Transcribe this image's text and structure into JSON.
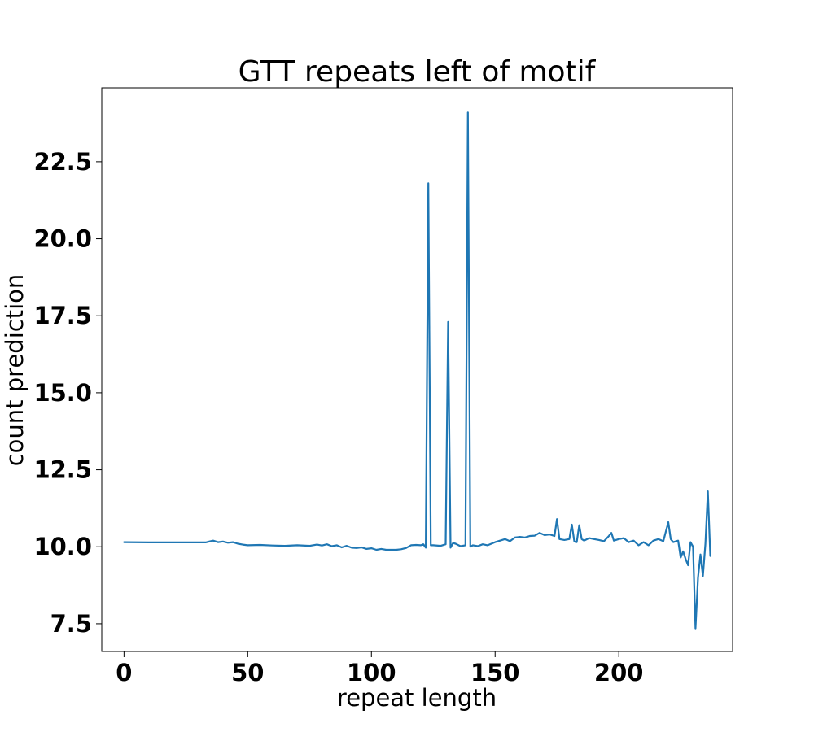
{
  "chart_data": {
    "type": "line",
    "title": "GTT repeats left of motif",
    "xlabel": "repeat length",
    "ylabel": "count prediction",
    "xlim": [
      -9,
      246
    ],
    "ylim": [
      6.6,
      24.9
    ],
    "xticks": [
      0,
      50,
      100,
      150,
      200
    ],
    "xtick_labels": [
      "0",
      "50",
      "100",
      "150",
      "200"
    ],
    "yticks": [
      7.5,
      10.0,
      12.5,
      15.0,
      17.5,
      20.0,
      22.5
    ],
    "ytick_labels": [
      "7.5",
      "10.0",
      "12.5",
      "15.0",
      "17.5",
      "20.0",
      "22.5"
    ],
    "grid": false,
    "color": "#1f77b4",
    "series": [
      {
        "x": [
          0,
          10,
          20,
          30,
          33,
          36,
          38,
          40,
          42,
          44,
          46,
          48,
          50,
          55,
          60,
          65,
          70,
          75,
          78,
          80,
          82,
          84,
          86,
          88,
          90,
          92,
          94,
          96,
          98,
          100,
          102,
          104,
          106,
          108,
          110,
          112,
          114,
          116,
          118,
          120,
          121,
          122,
          123,
          124,
          125,
          128,
          130,
          131,
          132,
          133,
          134,
          136,
          138,
          139,
          140,
          141,
          143,
          145,
          147,
          150,
          152,
          154,
          156,
          158,
          160,
          162,
          164,
          166,
          168,
          170,
          172,
          174,
          175,
          176,
          178,
          180,
          181,
          182,
          183,
          184,
          185,
          186,
          188,
          190,
          192,
          194,
          196,
          197,
          198,
          200,
          202,
          204,
          206,
          208,
          210,
          212,
          214,
          216,
          218,
          220,
          221,
          222,
          224,
          225,
          226,
          227,
          228,
          229,
          230,
          231,
          232,
          233,
          234,
          235,
          236,
          237
        ],
        "y": [
          10.15,
          10.14,
          10.14,
          10.14,
          10.14,
          10.2,
          10.15,
          10.17,
          10.13,
          10.15,
          10.1,
          10.07,
          10.05,
          10.06,
          10.04,
          10.03,
          10.05,
          10.03,
          10.07,
          10.04,
          10.08,
          10.02,
          10.05,
          9.98,
          10.03,
          9.97,
          9.96,
          9.98,
          9.93,
          9.95,
          9.9,
          9.93,
          9.9,
          9.9,
          9.9,
          9.92,
          9.96,
          10.05,
          10.06,
          10.05,
          10.08,
          9.97,
          21.8,
          10.05,
          10.05,
          10.03,
          10.08,
          17.3,
          9.97,
          10.12,
          10.1,
          10.02,
          10.05,
          24.1,
          10.0,
          10.05,
          10.02,
          10.08,
          10.05,
          10.15,
          10.2,
          10.25,
          10.18,
          10.3,
          10.32,
          10.3,
          10.35,
          10.36,
          10.45,
          10.38,
          10.4,
          10.35,
          10.9,
          10.25,
          10.22,
          10.25,
          10.72,
          10.18,
          10.15,
          10.7,
          10.25,
          10.2,
          10.28,
          10.25,
          10.22,
          10.18,
          10.35,
          10.45,
          10.2,
          10.25,
          10.28,
          10.15,
          10.2,
          10.05,
          10.15,
          10.05,
          10.2,
          10.25,
          10.18,
          10.8,
          10.25,
          10.15,
          10.2,
          9.65,
          9.85,
          9.6,
          9.4,
          10.15,
          10.0,
          7.35,
          9.0,
          9.75,
          9.05,
          10.1,
          11.8,
          9.7
        ]
      }
    ]
  }
}
